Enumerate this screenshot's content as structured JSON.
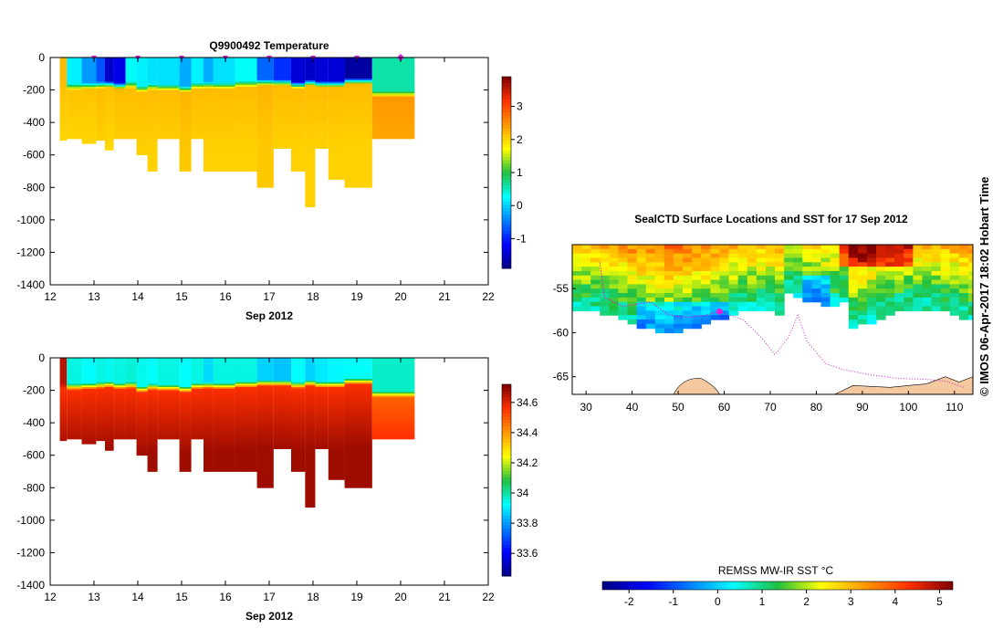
{
  "colors": {
    "plot_border": "#000000",
    "marker": "#e020e0",
    "track": "#d020d0",
    "land": "#f5c9a0",
    "ice": "#ffffff"
  },
  "copyright": "© IMOS 06-Apr-2017 18:02 Hobart Time",
  "chart_data": [
    {
      "id": "temperature",
      "type": "heatmap",
      "title": "Q9900492  Temperature",
      "xlabel": "Sep 2012",
      "ylabel": "",
      "xlim": [
        12,
        22
      ],
      "ylim": [
        -1400,
        0
      ],
      "xticks": [
        12,
        13,
        14,
        15,
        16,
        17,
        18,
        19,
        20,
        21,
        22
      ],
      "yticks": [
        0,
        -200,
        -400,
        -600,
        -800,
        -1000,
        -1200,
        -1400
      ],
      "colorbar": {
        "min": -1.9,
        "max": 3.9,
        "ticks": [
          -1,
          0,
          1,
          2,
          3
        ],
        "colormap": "jet"
      },
      "profile_markers": [
        13,
        14,
        15,
        16,
        17,
        18,
        19,
        20
      ],
      "profiles": [
        {
          "start": 12.22,
          "end": 12.38,
          "depth": 510,
          "surface": 2.2,
          "mixed_depth": 170,
          "deep": 2.0
        },
        {
          "start": 12.38,
          "end": 12.72,
          "depth": 500,
          "surface": 0.2,
          "mixed_depth": 175,
          "deep": 2.0
        },
        {
          "start": 12.72,
          "end": 13.05,
          "depth": 530,
          "surface": -0.3,
          "mixed_depth": 170,
          "deep": 2.0
        },
        {
          "start": 13.05,
          "end": 13.25,
          "depth": 510,
          "surface": -0.7,
          "mixed_depth": 165,
          "deep": 2.05
        },
        {
          "start": 13.25,
          "end": 13.45,
          "depth": 570,
          "surface": -1.5,
          "mixed_depth": 160,
          "deep": 2.0
        },
        {
          "start": 13.45,
          "end": 13.72,
          "depth": 500,
          "surface": -1.3,
          "mixed_depth": 170,
          "deep": 2.05
        },
        {
          "start": 13.72,
          "end": 13.97,
          "depth": 500,
          "surface": 0.3,
          "mixed_depth": 165,
          "deep": 2.05
        },
        {
          "start": 13.97,
          "end": 14.22,
          "depth": 600,
          "surface": 0.2,
          "mixed_depth": 190,
          "deep": 2.05
        },
        {
          "start": 14.22,
          "end": 14.45,
          "depth": 700,
          "surface": 0.1,
          "mixed_depth": 175,
          "deep": 2.05
        },
        {
          "start": 14.45,
          "end": 14.95,
          "depth": 500,
          "surface": 0.1,
          "mixed_depth": 180,
          "deep": 2.05
        },
        {
          "start": 14.95,
          "end": 15.22,
          "depth": 700,
          "surface": -0.2,
          "mixed_depth": 190,
          "deep": 2.1
        },
        {
          "start": 15.22,
          "end": 15.5,
          "depth": 500,
          "surface": 0.2,
          "mixed_depth": 170,
          "deep": 2.05
        },
        {
          "start": 15.5,
          "end": 15.72,
          "depth": 700,
          "surface": -0.2,
          "mixed_depth": 165,
          "deep": 2.05
        },
        {
          "start": 15.72,
          "end": 16.22,
          "depth": 700,
          "surface": 0.1,
          "mixed_depth": 170,
          "deep": 2.05
        },
        {
          "start": 16.22,
          "end": 16.72,
          "depth": 700,
          "surface": 0.3,
          "mixed_depth": 160,
          "deep": 2.05
        },
        {
          "start": 16.72,
          "end": 17.1,
          "depth": 800,
          "surface": -0.6,
          "mixed_depth": 150,
          "deep": 2.1
        },
        {
          "start": 17.1,
          "end": 17.5,
          "depth": 560,
          "surface": -0.9,
          "mixed_depth": 150,
          "deep": 2.05
        },
        {
          "start": 17.5,
          "end": 17.82,
          "depth": 700,
          "surface": -1.4,
          "mixed_depth": 165,
          "deep": 2.05
        },
        {
          "start": 17.82,
          "end": 18.05,
          "depth": 920,
          "surface": -1.5,
          "mixed_depth": 150,
          "deep": 2.05
        },
        {
          "start": 18.05,
          "end": 18.35,
          "depth": 560,
          "surface": -1.4,
          "mixed_depth": 160,
          "deep": 2.05
        },
        {
          "start": 18.35,
          "end": 18.72,
          "depth": 750,
          "surface": -1.4,
          "mixed_depth": 160,
          "deep": 2.05
        },
        {
          "start": 18.72,
          "end": 19.35,
          "depth": 800,
          "surface": -1.7,
          "mixed_depth": 140,
          "deep": 2.05
        },
        {
          "start": 19.35,
          "end": 20.32,
          "depth": 500,
          "surface": 0.6,
          "mixed_depth": 220,
          "deep": 2.3
        }
      ]
    },
    {
      "id": "salinity",
      "type": "heatmap",
      "title": "",
      "xlabel": "Sep 2012",
      "ylabel": "",
      "xlim": [
        12,
        22
      ],
      "ylim": [
        -1400,
        0
      ],
      "xticks": [
        12,
        13,
        14,
        15,
        16,
        17,
        18,
        19,
        20,
        21,
        22
      ],
      "yticks": [
        0,
        -200,
        -400,
        -600,
        -800,
        -1000,
        -1200,
        -1400
      ],
      "colorbar": {
        "min": 33.45,
        "max": 34.72,
        "ticks": [
          33.6,
          33.8,
          34,
          34.2,
          34.4,
          34.6
        ],
        "colormap": "jet"
      },
      "profiles": [
        {
          "start": 12.22,
          "end": 12.38,
          "depth": 510,
          "surface": 34.65,
          "mixed_depth": 170,
          "deep": 34.68
        },
        {
          "start": 12.38,
          "end": 12.72,
          "depth": 500,
          "surface": 33.95,
          "mixed_depth": 175,
          "deep": 34.68
        },
        {
          "start": 12.72,
          "end": 13.05,
          "depth": 530,
          "surface": 33.93,
          "mixed_depth": 170,
          "deep": 34.68
        },
        {
          "start": 13.05,
          "end": 13.25,
          "depth": 510,
          "surface": 33.95,
          "mixed_depth": 165,
          "deep": 34.68
        },
        {
          "start": 13.25,
          "end": 13.45,
          "depth": 570,
          "surface": 33.94,
          "mixed_depth": 160,
          "deep": 34.68
        },
        {
          "start": 13.45,
          "end": 13.72,
          "depth": 500,
          "surface": 33.95,
          "mixed_depth": 170,
          "deep": 34.68
        },
        {
          "start": 13.72,
          "end": 13.97,
          "depth": 500,
          "surface": 33.96,
          "mixed_depth": 165,
          "deep": 34.68
        },
        {
          "start": 13.97,
          "end": 14.22,
          "depth": 600,
          "surface": 33.94,
          "mixed_depth": 190,
          "deep": 34.68
        },
        {
          "start": 14.22,
          "end": 14.45,
          "depth": 700,
          "surface": 33.93,
          "mixed_depth": 175,
          "deep": 34.68
        },
        {
          "start": 14.45,
          "end": 14.95,
          "depth": 500,
          "surface": 33.95,
          "mixed_depth": 180,
          "deep": 34.68
        },
        {
          "start": 14.95,
          "end": 15.22,
          "depth": 700,
          "surface": 33.93,
          "mixed_depth": 190,
          "deep": 34.68
        },
        {
          "start": 15.22,
          "end": 15.5,
          "depth": 500,
          "surface": 33.95,
          "mixed_depth": 170,
          "deep": 34.68
        },
        {
          "start": 15.5,
          "end": 15.72,
          "depth": 700,
          "surface": 33.88,
          "mixed_depth": 165,
          "deep": 34.68
        },
        {
          "start": 15.72,
          "end": 16.22,
          "depth": 700,
          "surface": 33.95,
          "mixed_depth": 170,
          "deep": 34.68
        },
        {
          "start": 16.22,
          "end": 16.72,
          "depth": 700,
          "surface": 33.95,
          "mixed_depth": 160,
          "deep": 34.68
        },
        {
          "start": 16.72,
          "end": 17.1,
          "depth": 800,
          "surface": 33.87,
          "mixed_depth": 150,
          "deep": 34.68
        },
        {
          "start": 17.1,
          "end": 17.5,
          "depth": 560,
          "surface": 33.85,
          "mixed_depth": 150,
          "deep": 34.68
        },
        {
          "start": 17.5,
          "end": 17.82,
          "depth": 700,
          "surface": 33.93,
          "mixed_depth": 165,
          "deep": 34.68
        },
        {
          "start": 17.82,
          "end": 18.05,
          "depth": 920,
          "surface": 33.87,
          "mixed_depth": 150,
          "deep": 34.68
        },
        {
          "start": 18.05,
          "end": 18.35,
          "depth": 560,
          "surface": 33.9,
          "mixed_depth": 160,
          "deep": 34.68
        },
        {
          "start": 18.35,
          "end": 18.72,
          "depth": 750,
          "surface": 33.92,
          "mixed_depth": 160,
          "deep": 34.68
        },
        {
          "start": 18.72,
          "end": 19.35,
          "depth": 800,
          "surface": 33.93,
          "mixed_depth": 140,
          "deep": 34.68
        },
        {
          "start": 19.35,
          "end": 20.32,
          "depth": 500,
          "surface": 33.97,
          "mixed_depth": 220,
          "deep": 34.6
        }
      ]
    },
    {
      "id": "sst_map",
      "type": "heatmap",
      "title": "SealCTD Surface Locations and SST for 17 Sep 2012",
      "xlabel": "",
      "ylabel": "",
      "xlim": [
        27,
        114
      ],
      "ylim": [
        -67,
        -50
      ],
      "xticks": [
        30,
        40,
        50,
        60,
        70,
        80,
        90,
        100,
        110
      ],
      "yticks": [
        -55,
        -60,
        -65
      ],
      "colorbar": {
        "label": "REMSS MW-IR SST °C",
        "min": -2.6,
        "max": 5.3,
        "ticks": [
          -2,
          -1,
          0,
          1,
          2,
          3,
          4,
          5
        ],
        "colormap": "jet"
      },
      "track": [
        [
          33,
          -52
        ],
        [
          34,
          -56
        ],
        [
          38,
          -57
        ],
        [
          44,
          -56.5
        ],
        [
          48,
          -58
        ],
        [
          52,
          -58.3
        ],
        [
          56,
          -58
        ],
        [
          59,
          -57.6
        ]
      ],
      "track_tail": [
        [
          59,
          -57.6
        ],
        [
          64,
          -58.5
        ],
        [
          68,
          -60.5
        ],
        [
          71,
          -62.5
        ],
        [
          74,
          -60.5
        ],
        [
          76,
          -58
        ],
        [
          78,
          -61
        ],
        [
          82,
          -63.5
        ],
        [
          86,
          -64.2
        ],
        [
          92,
          -64.8
        ],
        [
          98,
          -65.2
        ],
        [
          104,
          -65.3
        ],
        [
          108,
          -65.5
        ],
        [
          112,
          -66.2
        ]
      ],
      "current_position": [
        59,
        -57.6
      ]
    }
  ]
}
